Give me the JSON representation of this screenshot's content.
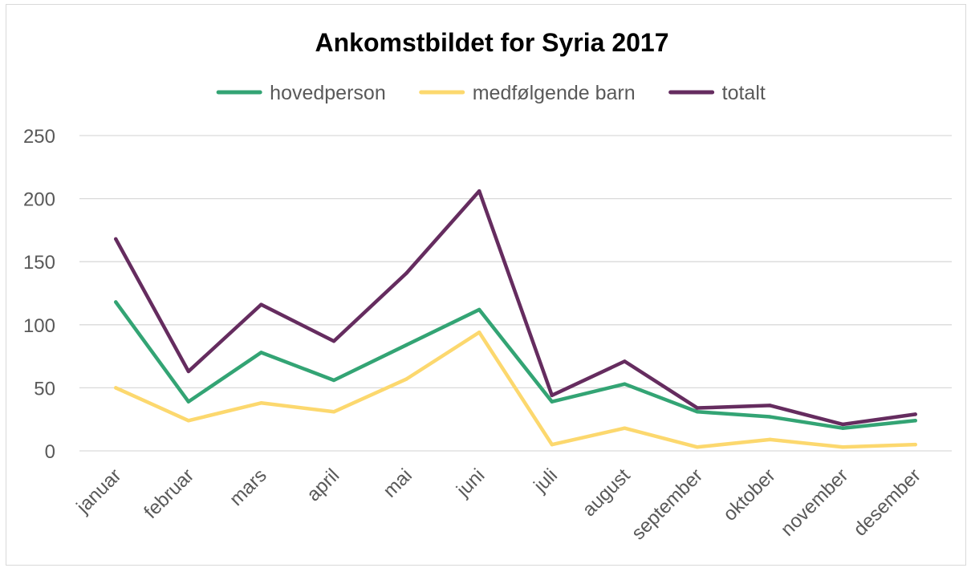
{
  "chart_data": {
    "type": "line",
    "title": "Ankomstbildet for Syria 2017",
    "xlabel": "",
    "ylabel": "",
    "categories": [
      "januar",
      "februar",
      "mars",
      "april",
      "mai",
      "juni",
      "juli",
      "august",
      "september",
      "oktober",
      "november",
      "desember"
    ],
    "ylim": [
      0,
      250
    ],
    "yticks": [
      "0",
      "50",
      "100",
      "150",
      "200",
      "250"
    ],
    "grid": true,
    "legend_position": "top",
    "series": [
      {
        "name": "hovedperson",
        "color": "#33a474",
        "values": [
          118,
          39,
          78,
          56,
          84,
          112,
          39,
          53,
          31,
          27,
          18,
          24
        ]
      },
      {
        "name": "medfølgende barn",
        "color": "#fcd86e",
        "values": [
          50,
          24,
          38,
          31,
          57,
          94,
          5,
          18,
          3,
          9,
          3,
          5
        ]
      },
      {
        "name": "totalt",
        "color": "#652c5f",
        "values": [
          168,
          63,
          116,
          87,
          141,
          206,
          44,
          71,
          34,
          36,
          21,
          29
        ]
      }
    ]
  }
}
